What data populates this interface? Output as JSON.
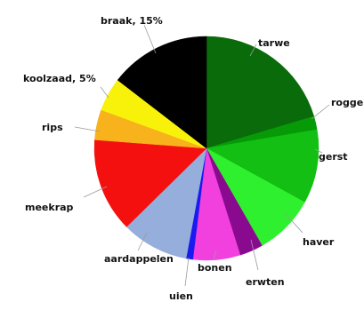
{
  "chart_data": {
    "type": "pie",
    "title": "",
    "start_angle_deg": 0,
    "direction": "clockwise",
    "slices": [
      {
        "label": "tarwe",
        "value": 21,
        "color": "#0a6b0a"
      },
      {
        "label": "rogge",
        "value": 2,
        "color": "#079a07"
      },
      {
        "label": "gerst",
        "value": 11,
        "color": "#12bf12"
      },
      {
        "label": "haver",
        "value": 9,
        "color": "#2ff02f"
      },
      {
        "label": "erwten",
        "value": 3.5,
        "color": "#8a0a8f"
      },
      {
        "label": "bonen",
        "value": 7,
        "color": "#f240de"
      },
      {
        "label": "uien",
        "value": 1,
        "color": "#1a1af0"
      },
      {
        "label": "aardappelen",
        "value": 10,
        "color": "#95aedb"
      },
      {
        "label": "meekrap",
        "value": 14,
        "color": "#f51010"
      },
      {
        "label": "rips",
        "value": 4.5,
        "color": "#f7b21c"
      },
      {
        "label": "koolzaad, 5%",
        "value": 5,
        "color": "#f8f20a"
      },
      {
        "label": "braak, 15%",
        "value": 15,
        "color": "#000000"
      }
    ]
  }
}
